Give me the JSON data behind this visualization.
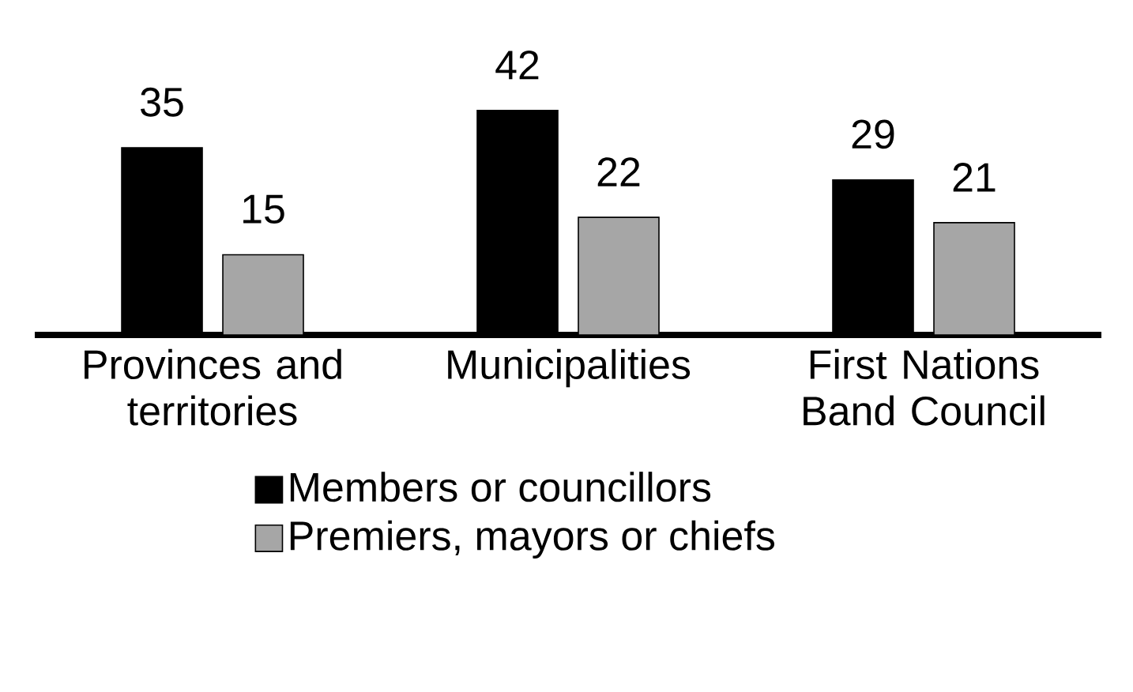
{
  "chart_data": {
    "type": "bar",
    "categories": [
      "Provinces and territories",
      "Municipalities",
      "First Nations Band Council"
    ],
    "series": [
      {
        "name": "Members or councillors",
        "color": "#000000",
        "values": [
          35,
          42,
          29
        ]
      },
      {
        "name": "Premiers, mayors or chiefs",
        "color": "#a6a6a6",
        "values": [
          15,
          22,
          21
        ]
      }
    ],
    "data_labels": true,
    "legend": "bottom"
  }
}
